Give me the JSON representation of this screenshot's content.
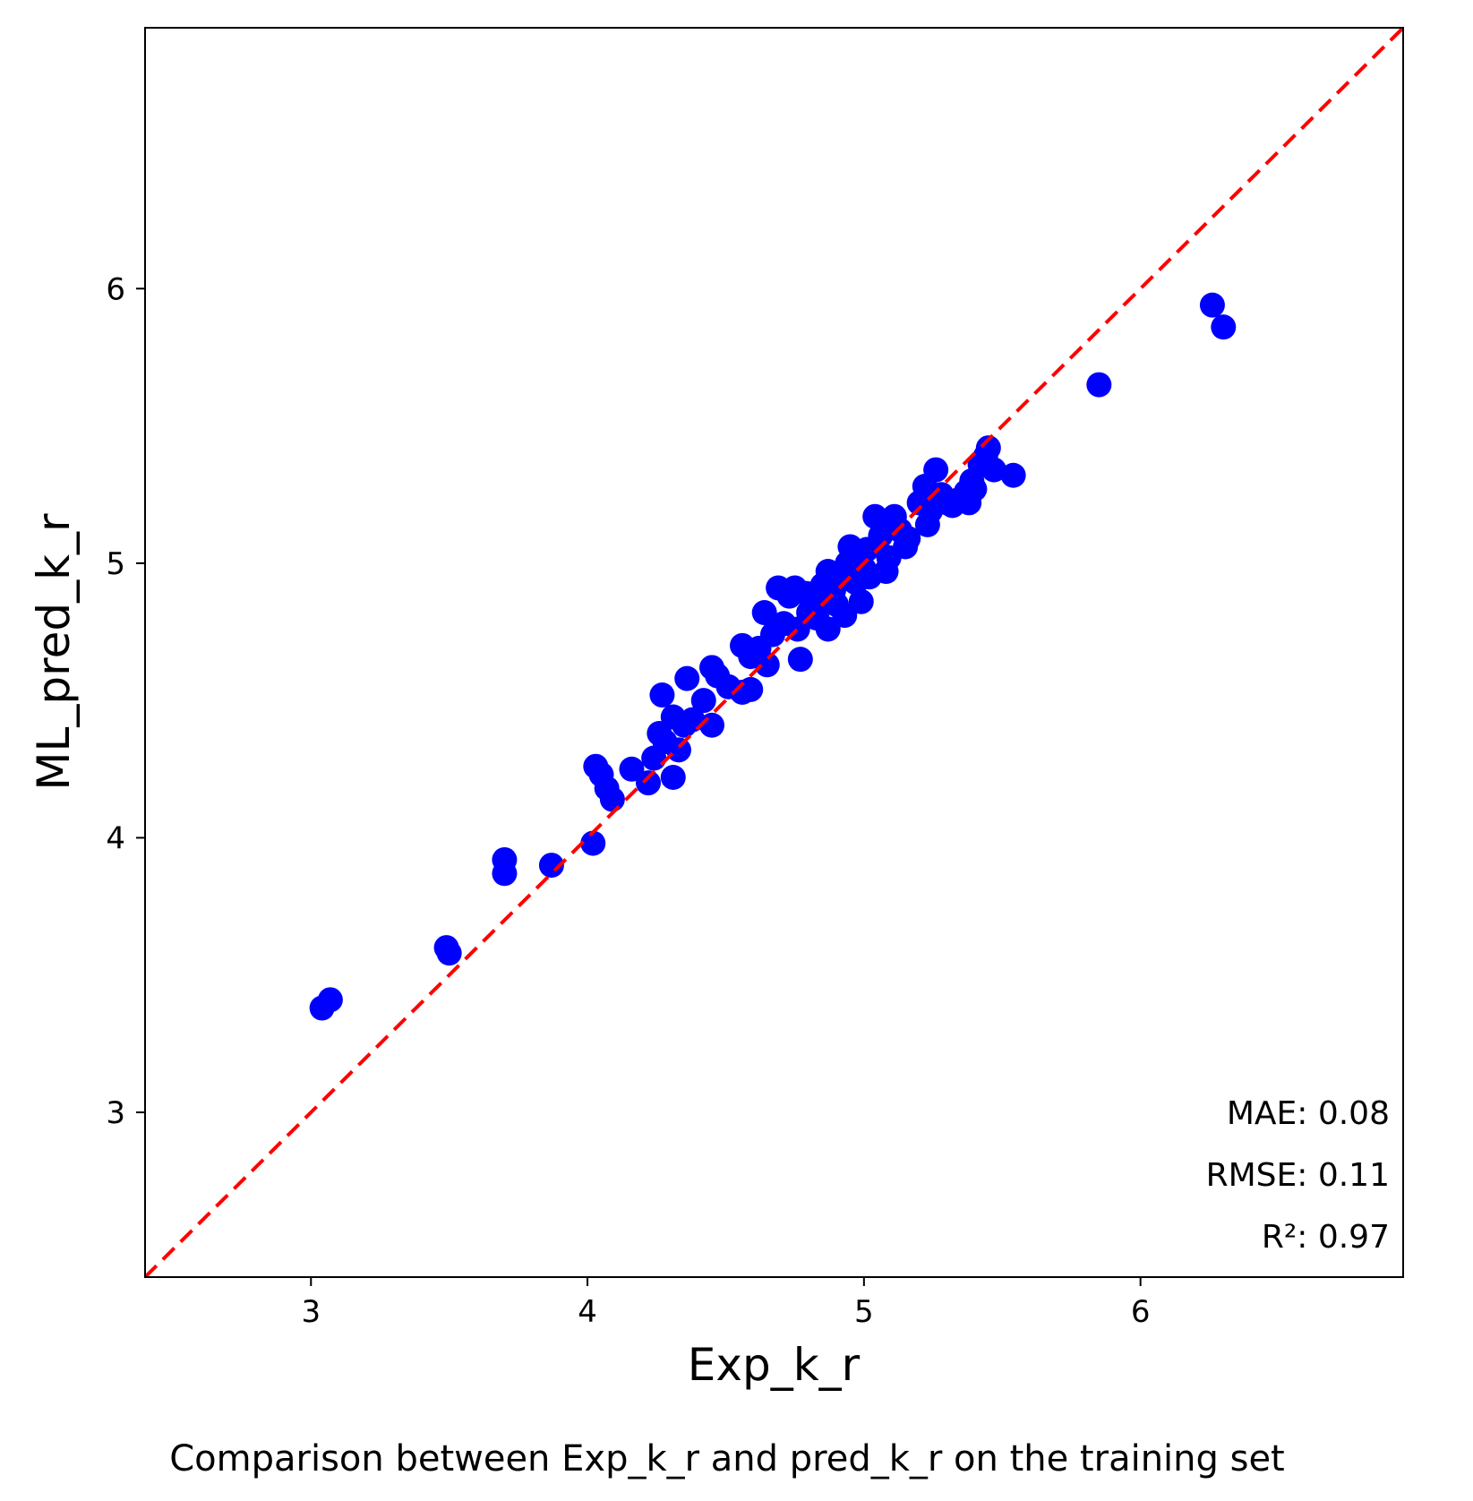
{
  "chart_data": {
    "type": "scatter",
    "xlabel": "Exp_k_r",
    "ylabel": "ML_pred_k_r",
    "caption": "Comparison between Exp_k_r and pred_k_r on the training set",
    "xlim": [
      2.4,
      6.95
    ],
    "ylim": [
      2.4,
      6.95
    ],
    "xticks": [
      3,
      4,
      5,
      6
    ],
    "yticks": [
      3,
      4,
      5,
      6
    ],
    "grid": false,
    "reference_line": {
      "type": "identity",
      "style": "dashed",
      "color": "#ff0000"
    },
    "point_color": "#0000ff",
    "metrics": [
      "MAE: 0.08",
      "RMSE: 0.11",
      "R²: 0.97"
    ],
    "points": [
      [
        3.04,
        3.38
      ],
      [
        3.07,
        3.41
      ],
      [
        3.49,
        3.6
      ],
      [
        3.5,
        3.58
      ],
      [
        3.7,
        3.92
      ],
      [
        3.7,
        3.87
      ],
      [
        3.87,
        3.9
      ],
      [
        4.02,
        3.98
      ],
      [
        4.03,
        4.26
      ],
      [
        4.05,
        4.23
      ],
      [
        4.07,
        4.18
      ],
      [
        4.09,
        4.14
      ],
      [
        4.16,
        4.25
      ],
      [
        4.22,
        4.2
      ],
      [
        4.24,
        4.29
      ],
      [
        4.26,
        4.38
      ],
      [
        4.27,
        4.52
      ],
      [
        4.28,
        4.35
      ],
      [
        4.31,
        4.44
      ],
      [
        4.31,
        4.22
      ],
      [
        4.33,
        4.32
      ],
      [
        4.35,
        4.41
      ],
      [
        4.36,
        4.58
      ],
      [
        4.38,
        4.43
      ],
      [
        4.42,
        4.5
      ],
      [
        4.45,
        4.41
      ],
      [
        4.45,
        4.62
      ],
      [
        4.47,
        4.59
      ],
      [
        4.51,
        4.55
      ],
      [
        4.56,
        4.7
      ],
      [
        4.56,
        4.53
      ],
      [
        4.59,
        4.54
      ],
      [
        4.59,
        4.66
      ],
      [
        4.62,
        4.69
      ],
      [
        4.64,
        4.82
      ],
      [
        4.65,
        4.63
      ],
      [
        4.67,
        4.74
      ],
      [
        4.69,
        4.91
      ],
      [
        4.71,
        4.78
      ],
      [
        4.73,
        4.88
      ],
      [
        4.75,
        4.91
      ],
      [
        4.76,
        4.76
      ],
      [
        4.77,
        4.65
      ],
      [
        4.79,
        4.89
      ],
      [
        4.8,
        4.82
      ],
      [
        4.82,
        4.86
      ],
      [
        4.83,
        4.8
      ],
      [
        4.85,
        4.92
      ],
      [
        4.87,
        4.76
      ],
      [
        4.87,
        4.97
      ],
      [
        4.89,
        4.9
      ],
      [
        4.9,
        4.85
      ],
      [
        4.92,
        4.94
      ],
      [
        4.93,
        4.81
      ],
      [
        4.94,
        5.0
      ],
      [
        4.95,
        5.06
      ],
      [
        4.97,
        4.93
      ],
      [
        4.99,
        4.86
      ],
      [
        5.0,
        4.98
      ],
      [
        5.01,
        5.05
      ],
      [
        5.02,
        4.95
      ],
      [
        5.04,
        5.17
      ],
      [
        5.06,
        5.1
      ],
      [
        5.08,
        4.97
      ],
      [
        5.09,
        5.02
      ],
      [
        5.11,
        5.17
      ],
      [
        5.13,
        5.12
      ],
      [
        5.15,
        5.06
      ],
      [
        5.16,
        5.09
      ],
      [
        5.2,
        5.22
      ],
      [
        5.22,
        5.28
      ],
      [
        5.23,
        5.14
      ],
      [
        5.24,
        5.19
      ],
      [
        5.26,
        5.34
      ],
      [
        5.28,
        5.25
      ],
      [
        5.3,
        5.22
      ],
      [
        5.32,
        5.21
      ],
      [
        5.34,
        5.23
      ],
      [
        5.37,
        5.26
      ],
      [
        5.38,
        5.22
      ],
      [
        5.39,
        5.3
      ],
      [
        5.4,
        5.27
      ],
      [
        5.42,
        5.36
      ],
      [
        5.44,
        5.39
      ],
      [
        5.45,
        5.42
      ],
      [
        5.47,
        5.34
      ],
      [
        5.54,
        5.32
      ],
      [
        5.85,
        5.65
      ],
      [
        6.26,
        5.94
      ],
      [
        6.3,
        5.86
      ]
    ]
  }
}
